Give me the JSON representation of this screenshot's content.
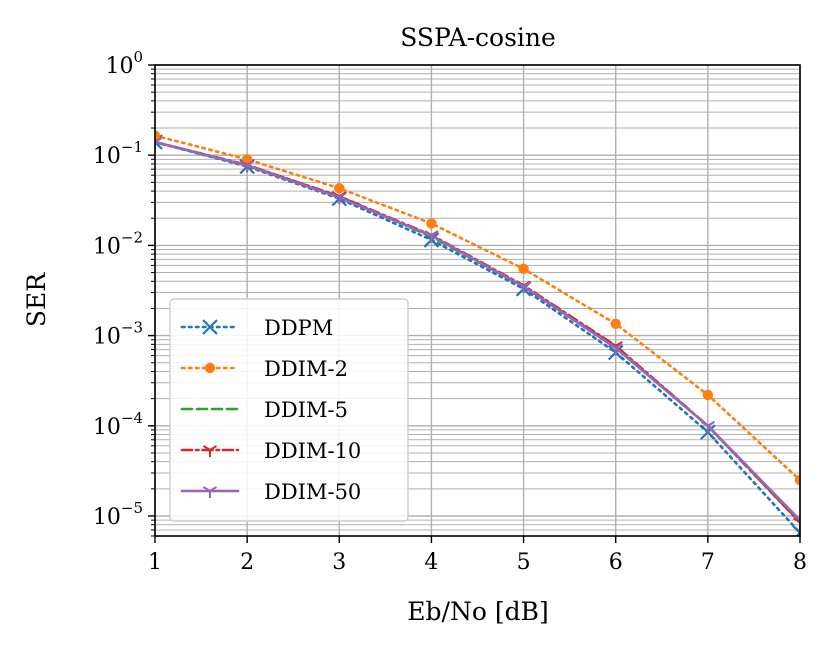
{
  "chart_data": {
    "type": "line",
    "title": "SSPA-cosine",
    "xlabel": "Eb/No [dB]",
    "ylabel": "SER",
    "x": [
      1,
      2,
      3,
      4,
      5,
      6,
      7,
      8
    ],
    "xlim": [
      1,
      8
    ],
    "ylim": [
      6e-06,
      1
    ],
    "yscale": "log",
    "grid": "on (major and minor)",
    "legend_position": "lower-left",
    "x_ticks": [
      "1",
      "2",
      "3",
      "4",
      "5",
      "6",
      "7",
      "8"
    ],
    "y_ticks": [
      {
        "base": "10",
        "exp": "0",
        "value": 1
      },
      {
        "base": "10",
        "exp": "−1",
        "value": 0.1
      },
      {
        "base": "10",
        "exp": "−2",
        "value": 0.01
      },
      {
        "base": "10",
        "exp": "−3",
        "value": 0.001
      },
      {
        "base": "10",
        "exp": "−4",
        "value": 0.0001
      },
      {
        "base": "10",
        "exp": "−5",
        "value": 1e-05
      }
    ],
    "series": [
      {
        "name": "DDPM",
        "color": "#1f77b4",
        "dash": "dotted",
        "marker": "x",
        "values": [
          0.14,
          0.075,
          0.033,
          0.0115,
          0.0033,
          0.00065,
          8.5e-05,
          6.5e-06
        ]
      },
      {
        "name": "DDIM-2",
        "color": "#ff7f0e",
        "dash": "dotted",
        "marker": "dot",
        "values": [
          0.165,
          0.09,
          0.043,
          0.0175,
          0.0055,
          0.00135,
          0.00022,
          2.5e-05
        ]
      },
      {
        "name": "DDIM-5",
        "color": "#2ca02c",
        "dash": "dashed",
        "marker": "none",
        "values": [
          0.14,
          0.077,
          0.035,
          0.0125,
          0.0035,
          0.00075,
          0.0001,
          8.5e-06
        ]
      },
      {
        "name": "DDIM-10",
        "color": "#d62728",
        "dash": "dashdot",
        "marker": "tri",
        "values": [
          0.14,
          0.078,
          0.035,
          0.013,
          0.0036,
          0.00077,
          0.0001,
          8.5e-06
        ]
      },
      {
        "name": "DDIM-50",
        "color": "#9467bd",
        "dash": "solid",
        "marker": "tri",
        "values": [
          0.14,
          0.077,
          0.034,
          0.0128,
          0.0035,
          0.00073,
          0.0001,
          9e-06
        ]
      }
    ]
  }
}
